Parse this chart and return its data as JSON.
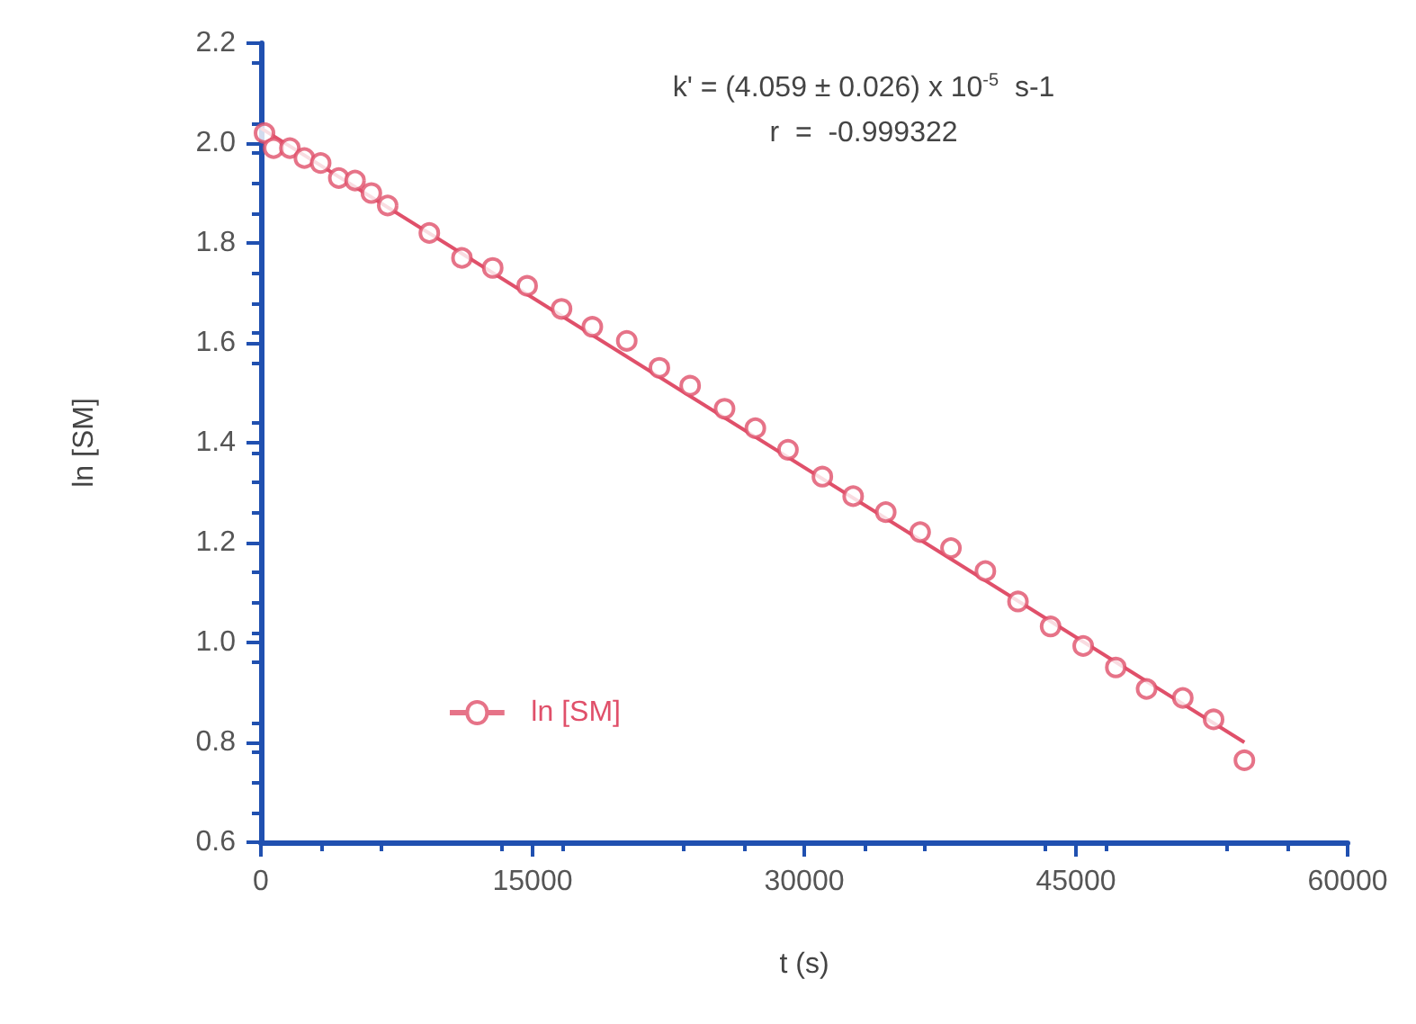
{
  "chart_data": {
    "type": "scatter",
    "xlabel": "t (s)",
    "ylabel": "ln [SM]",
    "annotations": [
      "k' = (4.059 ± 0.026) x 10$^{-5}$  s-1",
      "r  =  -0.999322"
    ],
    "series": [
      {
        "name": "ln [SM]",
        "color": "#e0506a",
        "x": [
          200,
          700,
          1600,
          2400,
          3300,
          4300,
          5200,
          6100,
          7000,
          9300,
          11100,
          12800,
          14700,
          16600,
          18300,
          20200,
          22000,
          23700,
          25600,
          27300,
          29100,
          31000,
          32700,
          34500,
          36400,
          38100,
          40000,
          41800,
          43600,
          45400,
          47200,
          48900,
          50900,
          52600,
          54300
        ],
        "values": [
          2.02,
          1.99,
          1.99,
          1.97,
          1.96,
          1.93,
          1.925,
          1.9,
          1.875,
          1.82,
          1.77,
          1.75,
          1.714,
          1.668,
          1.632,
          1.604,
          1.55,
          1.514,
          1.468,
          1.429,
          1.386,
          1.332,
          1.293,
          1.261,
          1.221,
          1.189,
          1.143,
          1.082,
          1.032,
          0.993,
          0.95,
          0.907,
          0.889,
          0.846,
          0.764
        ]
      },
      {
        "type": "line",
        "marker": "none",
        "color": "#e0506a",
        "x": [
          0,
          54300
        ],
        "values": [
          2.03,
          0.8
        ]
      }
    ],
    "xlim": [
      0,
      60000
    ],
    "xticks": [
      0,
      15000,
      30000,
      45000,
      60000
    ],
    "ylim": [
      0.6,
      2.2
    ],
    "yticks": [
      0.6,
      0.8,
      {
        "value": 1,
        "label": "1.0"
      },
      1.2,
      1.4,
      1.6,
      1.8,
      {
        "value": 2,
        "label": "2.0"
      },
      2.2
    ],
    "grid": false,
    "legend": "bottom left",
    "marker": "circle",
    "line_style": "solid"
  }
}
